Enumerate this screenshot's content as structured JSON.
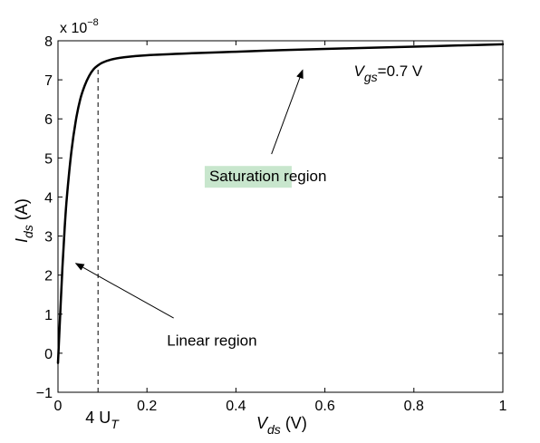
{
  "chart_data": {
    "type": "line",
    "title": "",
    "xlabel": {
      "main": "V",
      "sub": "ds",
      "unit": "(V)"
    },
    "ylabel": {
      "main": "I",
      "sub": "ds",
      "unit": "(A)"
    },
    "xlim": [
      0,
      1
    ],
    "ylim": [
      -1,
      8
    ],
    "xticks": [
      0,
      0.2,
      0.4,
      0.6,
      0.8,
      1
    ],
    "xtick_labels": [
      "0",
      "0.2",
      "0.4",
      "0.6",
      "0.8",
      "1"
    ],
    "yticks": [
      -1,
      0,
      1,
      2,
      3,
      4,
      5,
      6,
      7,
      8
    ],
    "ytick_labels": [
      "−1",
      "0",
      "1",
      "2",
      "3",
      "4",
      "5",
      "6",
      "7",
      "8"
    ],
    "y_multiplier": {
      "base": "x 10",
      "exponent": "−8"
    },
    "grid": false,
    "series": [
      {
        "color": "#000000",
        "x": [
          0,
          0.005,
          0.01,
          0.015,
          0.02,
          0.03,
          0.04,
          0.05,
          0.06,
          0.07,
          0.08,
          0.09,
          0.1,
          0.12,
          0.15,
          0.2,
          0.3,
          0.4,
          0.5,
          0.6,
          0.7,
          0.8,
          0.9,
          1.0
        ],
        "y": [
          -0.25,
          1.0,
          2.2,
          3.2,
          4.0,
          5.15,
          5.95,
          6.5,
          6.85,
          7.1,
          7.27,
          7.37,
          7.44,
          7.52,
          7.58,
          7.63,
          7.68,
          7.72,
          7.76,
          7.79,
          7.82,
          7.85,
          7.88,
          7.91
        ]
      }
    ],
    "vline": {
      "x": 0.09,
      "y_from": -1,
      "y_to": 7.35,
      "style": "dashed"
    },
    "vline_label": {
      "main": "4 U",
      "sub": "T"
    },
    "annotations": [
      {
        "name": "saturation",
        "text_highlight": "Saturation",
        "text_rest": " region",
        "highlight_color": "#c8e6cd",
        "text_x": 0.34,
        "text_y": 4.4,
        "arrow_from_x": 0.48,
        "arrow_from_y": 5.1,
        "arrow_to_x": 0.55,
        "arrow_to_y": 7.25
      },
      {
        "name": "linear",
        "text": "Linear region",
        "text_x": 0.245,
        "text_y": 0.2,
        "arrow_from_x": 0.26,
        "arrow_from_y": 0.9,
        "arrow_to_x": 0.04,
        "arrow_to_y": 2.3
      },
      {
        "name": "vgs",
        "main": "V",
        "sub": "gs",
        "rest": "=0.7 V",
        "text_x": 0.665,
        "text_y": 7.1
      }
    ]
  }
}
